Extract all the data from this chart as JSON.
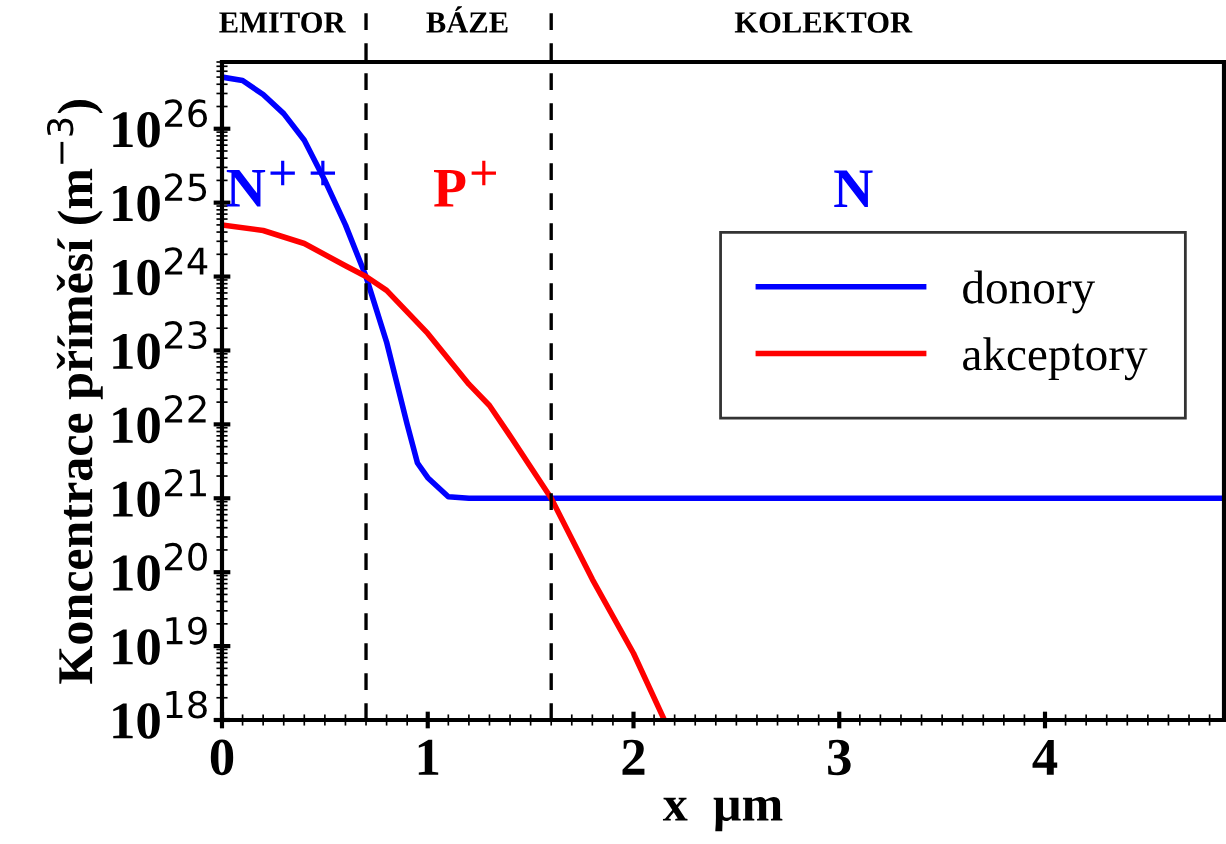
{
  "chart_data": {
    "type": "line",
    "xlabel": "x  µm",
    "ylabel": "Koncentrace příměsí (m$^{−3}$)",
    "log": "y",
    "legend": "center right",
    "grid": false,
    "line_style": "solid",
    "marker": "none",
    "xlim": [
      0,
      4.87
    ],
    "xticks": [
      0,
      1,
      2,
      3,
      4
    ],
    "ylim": [
      1e+18,
      8e+26
    ],
    "yticks": [
      {
        "value": 1e+18,
        "label": "10$^{18}$"
      },
      {
        "value": 1e+19,
        "label": "10$^{19}$"
      },
      {
        "value": 1e+20,
        "label": "10$^{20}$"
      },
      {
        "value": 1e+21,
        "label": "10$^{21}$"
      },
      {
        "value": 1e+22,
        "label": "10$^{22}$"
      },
      {
        "value": 1e+23,
        "label": "10$^{23}$"
      },
      {
        "value": 1e+24,
        "label": "10$^{24}$"
      },
      {
        "value": 1e+25,
        "label": "10$^{25}$"
      },
      {
        "value": 1e+26,
        "label": "10$^{26}$"
      }
    ],
    "series": [
      {
        "name": "donory",
        "color": "#0000ff",
        "x": [
          0,
          0.1,
          0.2,
          0.3,
          0.4,
          0.5,
          0.6,
          0.7,
          0.8,
          0.9,
          0.95,
          1.0,
          1.1,
          1.2,
          4.87
        ],
        "values": [
          5e+26,
          4.5e+26,
          2.9e+26,
          1.6e+26,
          7e+25,
          2e+25,
          5e+24,
          1e+24,
          1.3e+23,
          1e+22,
          3e+21,
          1.9e+21,
          1.05e+21,
          1e+21,
          1e+21
        ]
      },
      {
        "name": "akceptory",
        "color": "#ff0000",
        "x": [
          0,
          0.2,
          0.4,
          0.6,
          0.7,
          0.8,
          1.0,
          1.2,
          1.3,
          1.4,
          1.6,
          1.8,
          2.0,
          2.15
        ],
        "values": [
          5e+24,
          4.2e+24,
          2.8e+24,
          1.4e+24,
          1e+24,
          6.5e+23,
          1.7e+23,
          3.5e+22,
          1.8e+22,
          7e+21,
          1e+21,
          8e+19,
          8e+18,
          1e+18
        ]
      }
    ],
    "ref_lines": [
      {
        "axis": "x",
        "value": 0.7,
        "color": "#000000",
        "line_style": "dashed"
      },
      {
        "axis": "x",
        "value": 1.6,
        "color": "#000000",
        "line_style": "dashed"
      }
    ],
    "annotations": [
      "EMITOR",
      "BÁZE",
      "KOLEKTOR",
      "N$^{++}$",
      "P$^{+}$",
      "N"
    ]
  }
}
